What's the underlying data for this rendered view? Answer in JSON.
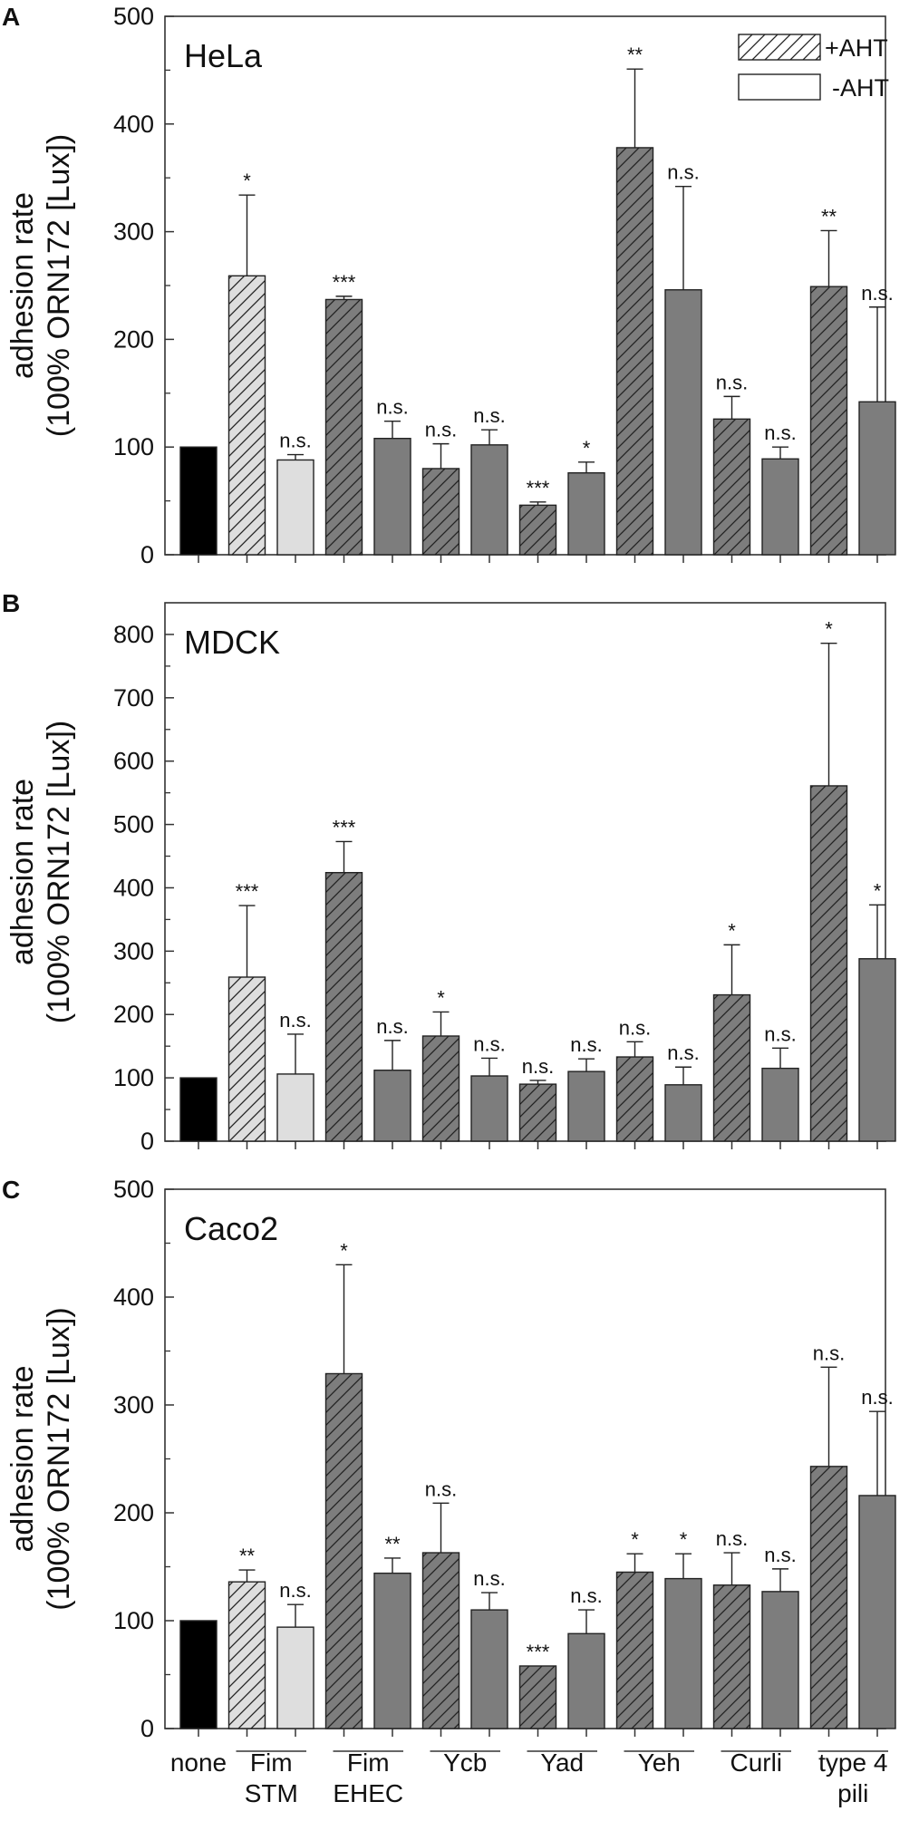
{
  "colors": {
    "none": "#000000",
    "stm": "#dedede",
    "other": "#7d7d7d",
    "stroke": "#222222",
    "legend_fill": "#ffffff"
  },
  "legend": {
    "ahtplus": "+AHT",
    "ahtminus": "-AHT"
  },
  "categories": [
    {
      "name": "none",
      "lines": [
        "none"
      ]
    },
    {
      "name": "fim-stm",
      "lines": [
        "Fim",
        "STM"
      ]
    },
    {
      "name": "fim-ehec",
      "lines": [
        "Fim",
        "EHEC"
      ]
    },
    {
      "name": "ycb",
      "lines": [
        "Ycb"
      ]
    },
    {
      "name": "yad",
      "lines": [
        "Yad"
      ]
    },
    {
      "name": "yeh",
      "lines": [
        "Yeh"
      ]
    },
    {
      "name": "curli",
      "lines": [
        "Curli"
      ]
    },
    {
      "name": "type4",
      "lines": [
        "type 4",
        "pili"
      ]
    }
  ],
  "chart_data": [
    {
      "type": "bar",
      "panel": "A",
      "cell_line": "HeLa",
      "ylabel_line1": "adhesion rate",
      "ylabel_line2": "(100% ORN172 [Lux])",
      "ylim": [
        0,
        500
      ],
      "yticks": [
        0,
        100,
        200,
        300,
        400,
        500
      ],
      "show_legend": true,
      "bars": [
        {
          "group": "none",
          "aht": "none",
          "value": 100,
          "err": 0,
          "sig": ""
        },
        {
          "group": "fim-stm",
          "aht": "plus",
          "value": 259,
          "err": 75,
          "sig": "*"
        },
        {
          "group": "fim-stm",
          "aht": "minus",
          "value": 88,
          "err": 5,
          "sig": "n.s."
        },
        {
          "group": "fim-ehec",
          "aht": "plus",
          "value": 237,
          "err": 3,
          "sig": "***"
        },
        {
          "group": "fim-ehec",
          "aht": "minus",
          "value": 108,
          "err": 16,
          "sig": "n.s."
        },
        {
          "group": "ycb",
          "aht": "plus",
          "value": 80,
          "err": 23,
          "sig": "n.s."
        },
        {
          "group": "ycb",
          "aht": "minus",
          "value": 102,
          "err": 14,
          "sig": "n.s."
        },
        {
          "group": "yad",
          "aht": "plus",
          "value": 46,
          "err": 3,
          "sig": "***"
        },
        {
          "group": "yad",
          "aht": "minus",
          "value": 76,
          "err": 10,
          "sig": "*"
        },
        {
          "group": "yeh",
          "aht": "plus",
          "value": 378,
          "err": 73,
          "sig": "**"
        },
        {
          "group": "yeh",
          "aht": "minus",
          "value": 246,
          "err": 96,
          "sig": "n.s."
        },
        {
          "group": "curli",
          "aht": "plus",
          "value": 126,
          "err": 21,
          "sig": "n.s."
        },
        {
          "group": "curli",
          "aht": "minus",
          "value": 89,
          "err": 11,
          "sig": "n.s."
        },
        {
          "group": "type4",
          "aht": "plus",
          "value": 249,
          "err": 52,
          "sig": "**"
        },
        {
          "group": "type4",
          "aht": "minus",
          "value": 142,
          "err": 88,
          "sig": "n.s."
        }
      ]
    },
    {
      "type": "bar",
      "panel": "B",
      "cell_line": "MDCK",
      "ylabel_line1": "adhesion rate",
      "ylabel_line2": "(100% ORN172 [Lux])",
      "ylim": [
        0,
        850
      ],
      "yticks": [
        0,
        100,
        200,
        300,
        400,
        500,
        600,
        700,
        800
      ],
      "show_legend": false,
      "bars": [
        {
          "group": "none",
          "aht": "none",
          "value": 100,
          "err": 0,
          "sig": ""
        },
        {
          "group": "fim-stm",
          "aht": "plus",
          "value": 259,
          "err": 113,
          "sig": "***"
        },
        {
          "group": "fim-stm",
          "aht": "minus",
          "value": 106,
          "err": 63,
          "sig": "n.s."
        },
        {
          "group": "fim-ehec",
          "aht": "plus",
          "value": 424,
          "err": 49,
          "sig": "***"
        },
        {
          "group": "fim-ehec",
          "aht": "minus",
          "value": 112,
          "err": 47,
          "sig": "n.s."
        },
        {
          "group": "ycb",
          "aht": "plus",
          "value": 166,
          "err": 38,
          "sig": "*"
        },
        {
          "group": "ycb",
          "aht": "minus",
          "value": 103,
          "err": 28,
          "sig": "n.s."
        },
        {
          "group": "yad",
          "aht": "plus",
          "value": 90,
          "err": 6,
          "sig": "n.s."
        },
        {
          "group": "yad",
          "aht": "minus",
          "value": 110,
          "err": 20,
          "sig": "n.s."
        },
        {
          "group": "yeh",
          "aht": "plus",
          "value": 133,
          "err": 24,
          "sig": "n.s."
        },
        {
          "group": "yeh",
          "aht": "minus",
          "value": 89,
          "err": 28,
          "sig": "n.s."
        },
        {
          "group": "curli",
          "aht": "plus",
          "value": 231,
          "err": 79,
          "sig": "*"
        },
        {
          "group": "curli",
          "aht": "minus",
          "value": 115,
          "err": 32,
          "sig": "n.s."
        },
        {
          "group": "type4",
          "aht": "plus",
          "value": 561,
          "err": 225,
          "sig": "*"
        },
        {
          "group": "type4",
          "aht": "minus",
          "value": 288,
          "err": 85,
          "sig": "*"
        }
      ]
    },
    {
      "type": "bar",
      "panel": "C",
      "cell_line": "Caco2",
      "ylabel_line1": "adhesion rate",
      "ylabel_line2": "(100% ORN172 [Lux])",
      "ylim": [
        0,
        500
      ],
      "yticks": [
        0,
        100,
        200,
        300,
        400,
        500
      ],
      "show_legend": false,
      "bars": [
        {
          "group": "none",
          "aht": "none",
          "value": 100,
          "err": 0,
          "sig": ""
        },
        {
          "group": "fim-stm",
          "aht": "plus",
          "value": 136,
          "err": 11,
          "sig": "**"
        },
        {
          "group": "fim-stm",
          "aht": "minus",
          "value": 94,
          "err": 21,
          "sig": "n.s."
        },
        {
          "group": "fim-ehec",
          "aht": "plus",
          "value": 329,
          "err": 101,
          "sig": "*"
        },
        {
          "group": "fim-ehec",
          "aht": "minus",
          "value": 144,
          "err": 14,
          "sig": "**"
        },
        {
          "group": "ycb",
          "aht": "plus",
          "value": 163,
          "err": 46,
          "sig": "n.s."
        },
        {
          "group": "ycb",
          "aht": "minus",
          "value": 110,
          "err": 16,
          "sig": "n.s."
        },
        {
          "group": "yad",
          "aht": "plus",
          "value": 58,
          "err": 0,
          "sig": "***"
        },
        {
          "group": "yad",
          "aht": "minus",
          "value": 88,
          "err": 22,
          "sig": "n.s."
        },
        {
          "group": "yeh",
          "aht": "plus",
          "value": 145,
          "err": 17,
          "sig": "*"
        },
        {
          "group": "yeh",
          "aht": "minus",
          "value": 139,
          "err": 23,
          "sig": "*"
        },
        {
          "group": "curli",
          "aht": "plus",
          "value": 133,
          "err": 30,
          "sig": "n.s."
        },
        {
          "group": "curli",
          "aht": "minus",
          "value": 127,
          "err": 21,
          "sig": "n.s."
        },
        {
          "group": "type4",
          "aht": "plus",
          "value": 243,
          "err": 92,
          "sig": "n.s."
        },
        {
          "group": "type4",
          "aht": "minus",
          "value": 216,
          "err": 78,
          "sig": "n.s."
        }
      ]
    }
  ]
}
